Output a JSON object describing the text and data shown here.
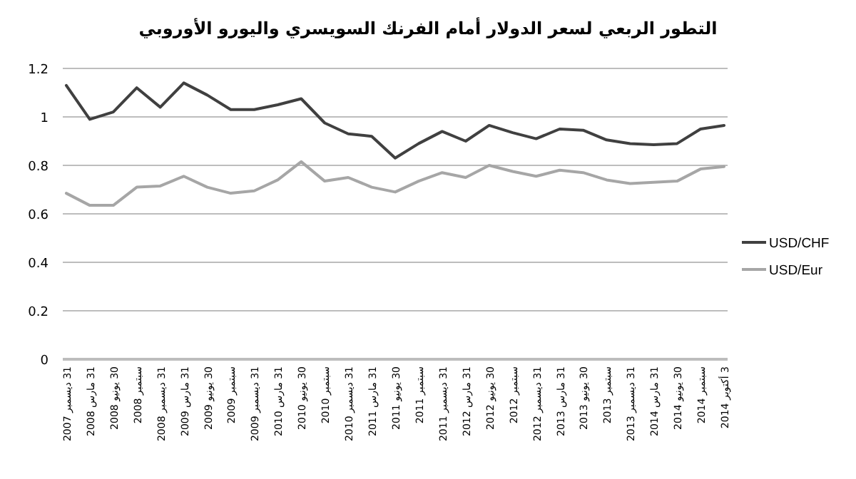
{
  "chart_data": {
    "type": "line",
    "title": "التطور الربعي لسعر الدولار أمام الفرنك السويسري واليورو الأوروبي",
    "categories": [
      "31 ديسمبر 2007",
      "31 مارس 2008",
      "30 يونيو 2008",
      "سبتمبر 2008",
      "31 ديسمبر 2008",
      "31 مارس 2009",
      "30 يونيو 2009",
      "سبتمبر 2009",
      "31 ديسمبر 2009",
      "31 مارس 2010",
      "30 يونيو 2010",
      "سبتمبر 2010",
      "31 ديسمبر 2010",
      "31 مارس 2011",
      "30 يونيو 2011",
      "سبتمبر 2011",
      "31 ديسمبر 2011",
      "31 مارس 2012",
      "30 يونيو 2012",
      "سبتمبر 2012",
      "31 ديسمبر 2012",
      "31 مارس 2013",
      "30 يونيو 2013",
      "سبتمبر 2013",
      "31 ديسمبر 2013",
      "31 مارس 2014",
      "30 يونيو 2014",
      "سبتمبر 2014",
      "3 أكتوبر 2014"
    ],
    "series": [
      {
        "name": "USD/CHF",
        "color": "#404040",
        "values": [
          1.13,
          0.99,
          1.02,
          1.12,
          1.04,
          1.14,
          1.09,
          1.03,
          1.03,
          1.05,
          1.075,
          0.975,
          0.93,
          0.92,
          0.83,
          0.89,
          0.94,
          0.9,
          0.965,
          0.935,
          0.91,
          0.95,
          0.945,
          0.905,
          0.89,
          0.885,
          0.89,
          0.95,
          0.965
        ]
      },
      {
        "name": "USD/Eur",
        "color": "#a6a6a6",
        "values": [
          0.685,
          0.635,
          0.635,
          0.71,
          0.715,
          0.755,
          0.71,
          0.685,
          0.695,
          0.74,
          0.815,
          0.735,
          0.75,
          0.71,
          0.69,
          0.735,
          0.77,
          0.75,
          0.8,
          0.775,
          0.755,
          0.78,
          0.77,
          0.74,
          0.725,
          0.73,
          0.735,
          0.785,
          0.795
        ]
      }
    ],
    "ylim": [
      0,
      1.2
    ],
    "yticks": [
      0,
      0.2,
      0.4,
      0.6,
      0.8,
      1,
      1.2
    ],
    "grid": "y",
    "legend": "right"
  }
}
